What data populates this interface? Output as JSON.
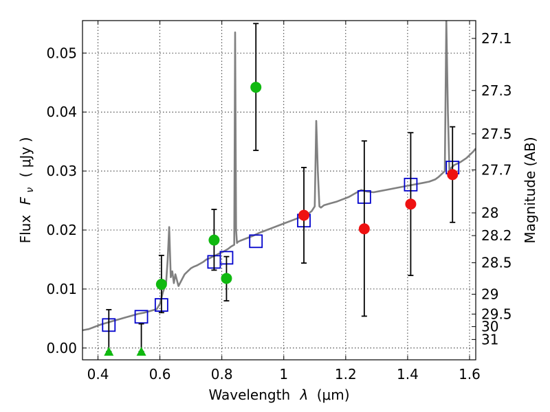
{
  "chart_data": {
    "type": "scatter",
    "xlabel": "Wavelength",
    "xlabel_symbol": "λ",
    "xlabel_unit": "(μm)",
    "ylabel": "Flux",
    "ylabel_symbol": "F",
    "ylabel_subscript": "ν",
    "ylabel_unit": "( μJy )",
    "y2label": "Magnitude (AB)",
    "xlim": [
      0.35,
      1.62
    ],
    "ylim": [
      -0.002,
      0.0555
    ],
    "grid": true,
    "x_ticks": [
      0.4,
      0.6,
      0.8,
      1.0,
      1.2,
      1.4,
      1.6
    ],
    "x_tick_labels": [
      "0.4",
      "0.6",
      "0.8",
      "1",
      "1.2",
      "1.4",
      "1.6"
    ],
    "y_ticks": [
      0.0,
      0.01,
      0.02,
      0.03,
      0.04,
      0.05
    ],
    "y_tick_labels": [
      "0.00",
      "0.01",
      "0.02",
      "0.03",
      "0.04",
      "0.05"
    ],
    "y2_ticks": [
      {
        "label": "27.1",
        "mag": 27.1
      },
      {
        "label": "27.3",
        "mag": 27.3
      },
      {
        "label": "27.5",
        "mag": 27.5
      },
      {
        "label": "27.7",
        "mag": 27.7
      },
      {
        "label": "28",
        "mag": 28.0
      },
      {
        "label": "28.2",
        "mag": 28.2
      },
      {
        "label": "28.5",
        "mag": 28.5
      },
      {
        "label": "29",
        "mag": 29.0
      },
      {
        "label": "29.5",
        "mag": 29.5
      },
      {
        "label": "30",
        "mag": 30.0
      },
      {
        "label": "31",
        "mag": 31.0
      }
    ],
    "series": [
      {
        "name": "model spectrum",
        "kind": "line",
        "color": "#808080",
        "x": [
          0.35,
          0.37,
          0.39,
          0.41,
          0.43,
          0.45,
          0.47,
          0.49,
          0.51,
          0.53,
          0.55,
          0.57,
          0.59,
          0.6,
          0.61,
          0.62,
          0.625,
          0.63,
          0.635,
          0.64,
          0.645,
          0.65,
          0.66,
          0.67,
          0.68,
          0.69,
          0.7,
          0.71,
          0.72,
          0.73,
          0.74,
          0.75,
          0.76,
          0.77,
          0.78,
          0.79,
          0.8,
          0.81,
          0.82,
          0.83,
          0.84,
          0.843,
          0.846,
          0.849,
          0.852,
          0.86,
          0.88,
          0.9,
          0.92,
          0.94,
          0.96,
          0.98,
          1.0,
          1.02,
          1.04,
          1.06,
          1.08,
          1.09,
          1.1,
          1.105,
          1.11,
          1.115,
          1.12,
          1.13,
          1.15,
          1.17,
          1.19,
          1.21,
          1.23,
          1.25,
          1.27,
          1.29,
          1.31,
          1.33,
          1.35,
          1.37,
          1.39,
          1.41,
          1.43,
          1.45,
          1.47,
          1.49,
          1.5,
          1.51,
          1.52,
          1.525,
          1.53,
          1.535,
          1.54,
          1.55,
          1.57,
          1.59,
          1.61,
          1.62
        ],
        "y": [
          0.003,
          0.0032,
          0.0036,
          0.004,
          0.0043,
          0.0046,
          0.0049,
          0.0052,
          0.0055,
          0.0058,
          0.006,
          0.0063,
          0.0066,
          0.0075,
          0.0095,
          0.011,
          0.015,
          0.0205,
          0.012,
          0.013,
          0.011,
          0.0125,
          0.0105,
          0.0115,
          0.0125,
          0.013,
          0.0135,
          0.0138,
          0.014,
          0.0143,
          0.0146,
          0.015,
          0.0152,
          0.0155,
          0.0157,
          0.016,
          0.0162,
          0.0165,
          0.0168,
          0.0172,
          0.0175,
          0.0535,
          0.02,
          0.0178,
          0.018,
          0.0182,
          0.0186,
          0.019,
          0.0195,
          0.0199,
          0.0203,
          0.0207,
          0.0211,
          0.0215,
          0.0219,
          0.0223,
          0.0228,
          0.0232,
          0.024,
          0.0385,
          0.03,
          0.024,
          0.0238,
          0.0242,
          0.0245,
          0.0248,
          0.0252,
          0.0256,
          0.0262,
          0.0268,
          0.0265,
          0.0264,
          0.0266,
          0.0268,
          0.027,
          0.0272,
          0.0274,
          0.0276,
          0.0278,
          0.028,
          0.0282,
          0.0286,
          0.029,
          0.0295,
          0.03,
          0.0555,
          0.04,
          0.03,
          0.0305,
          0.031,
          0.0315,
          0.0322,
          0.0332,
          0.0338
        ]
      },
      {
        "name": "model photometry",
        "kind": "open-square",
        "color": "#0000cc",
        "x": [
          0.435,
          0.54,
          0.605,
          0.775,
          0.815,
          0.91,
          1.065,
          1.26,
          1.41,
          1.545
        ],
        "y": [
          0.0039,
          0.0053,
          0.0073,
          0.0146,
          0.0153,
          0.0181,
          0.0216,
          0.0256,
          0.0277,
          0.0306
        ]
      },
      {
        "name": "observed (green)",
        "kind": "filled-circle",
        "color": "#10b910",
        "x": [
          0.605,
          0.775,
          0.815,
          0.91
        ],
        "y": [
          0.0108,
          0.0183,
          0.0118,
          0.0442
        ],
        "yerr_low": [
          0.0048,
          0.0051,
          0.0038,
          0.0107
        ],
        "yerr_high": [
          0.0049,
          0.0052,
          0.0037,
          0.0108
        ]
      },
      {
        "name": "observed (red)",
        "kind": "filled-circle",
        "color": "#ee1111",
        "x": [
          1.065,
          1.26,
          1.41,
          1.545
        ],
        "y": [
          0.0225,
          0.0202,
          0.0244,
          0.0294
        ],
        "yerr_low": [
          0.0081,
          0.0148,
          0.0121,
          0.0081
        ],
        "yerr_high": [
          0.0081,
          0.0149,
          0.0121,
          0.0081
        ]
      },
      {
        "name": "upper limits",
        "kind": "triangle",
        "color": "#10b910",
        "x": [
          0.435,
          0.54
        ],
        "y": [
          -0.0006,
          -0.0006
        ],
        "yerr_low": [
          0.0,
          0.0
        ],
        "yerr_high": [
          0.0071,
          0.0047
        ]
      }
    ]
  }
}
